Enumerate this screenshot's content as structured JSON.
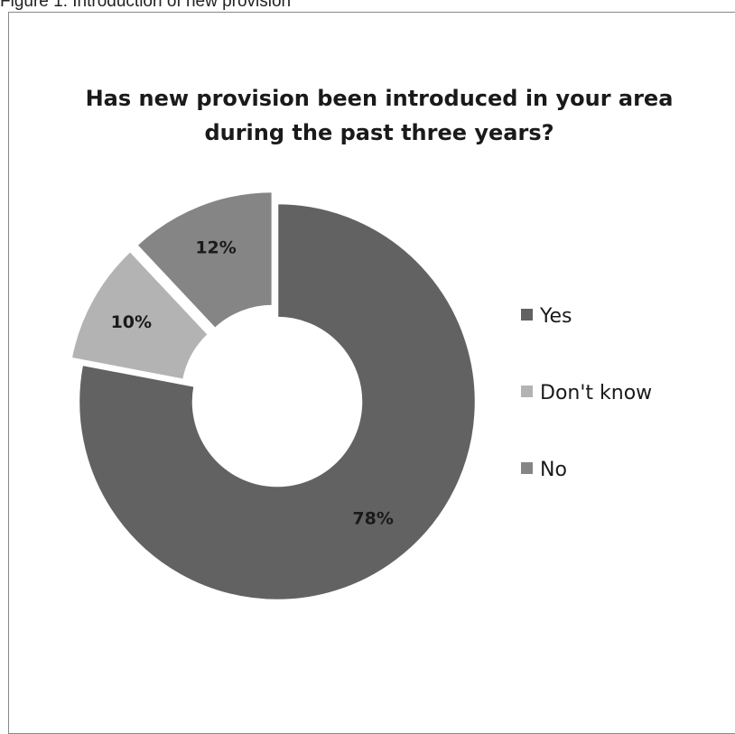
{
  "caption": "Figure 1: Introduction of new provision",
  "chart_data": {
    "type": "pie",
    "variant": "doughnut",
    "title": "Has new provision been introduced in your area during the past three years?",
    "categories": [
      "Yes",
      "Don't know",
      "No"
    ],
    "values": [
      78,
      10,
      12
    ],
    "labels": [
      "78%",
      "10%",
      "12%"
    ],
    "colors": [
      "#626262",
      "#b3b3b3",
      "#858585"
    ],
    "legend_position": "right",
    "exploded_slices": [
      "Don't know",
      "No"
    ]
  }
}
